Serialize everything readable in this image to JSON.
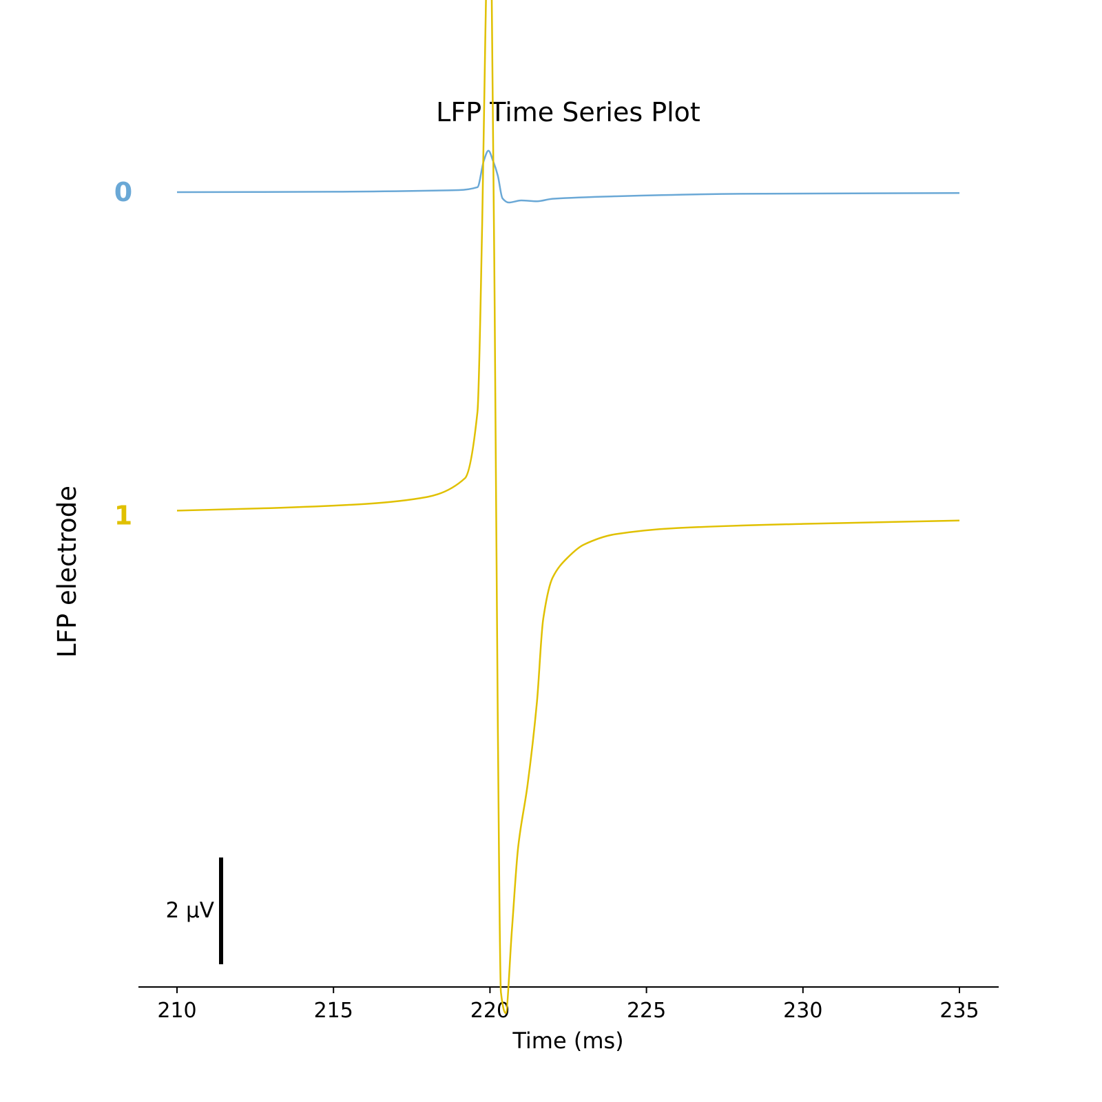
{
  "chart_data": {
    "type": "line",
    "title": "LFP Time Series Plot",
    "xlabel": "Time (ms)",
    "ylabel": "LFP electrode",
    "xlim": [
      208.8,
      236.2
    ],
    "x_ticks": [
      "210",
      "215",
      "220",
      "225",
      "230",
      "235"
    ],
    "x_tick_values": [
      210,
      215,
      220,
      225,
      230,
      235
    ],
    "y_channel_labels": [
      "0",
      "1"
    ],
    "scale_bar": {
      "label": "2 μV",
      "value": 2,
      "unit": "μV"
    },
    "grid": false,
    "series": [
      {
        "name": "0",
        "color": "#6aa8d6",
        "offset": 0,
        "x": [
          210,
          215,
          219,
          219.6,
          219.8,
          219.95,
          220.1,
          220.25,
          220.4,
          220.6,
          221,
          221.5,
          222,
          224,
          228,
          235
        ],
        "y": [
          0,
          0.01,
          0.05,
          0.12,
          0.75,
          1.0,
          0.75,
          0.4,
          -0.15,
          -0.25,
          -0.2,
          -0.22,
          -0.16,
          -0.1,
          -0.04,
          -0.02
        ]
      },
      {
        "name": "1",
        "color": "#e0c000",
        "offset": -7.8,
        "x": [
          210,
          213,
          216,
          218,
          219.2,
          219.6,
          219.75,
          219.85,
          219.95,
          220,
          220.05,
          220.15,
          220.25,
          220.35,
          220.5,
          220.7,
          220.9,
          221.2,
          221.5,
          221.7,
          222,
          222.5,
          223,
          224,
          226,
          230,
          235
        ],
        "y": [
          0.12,
          0.18,
          0.28,
          0.45,
          0.9,
          2.5,
          7.0,
          11.5,
          15.0,
          15.2,
          13.0,
          5.0,
          -5.0,
          -11.5,
          -12.0,
          -10.0,
          -8.0,
          -6.5,
          -4.5,
          -2.5,
          -1.5,
          -1.0,
          -0.7,
          -0.45,
          -0.3,
          -0.2,
          -0.12
        ]
      }
    ]
  }
}
